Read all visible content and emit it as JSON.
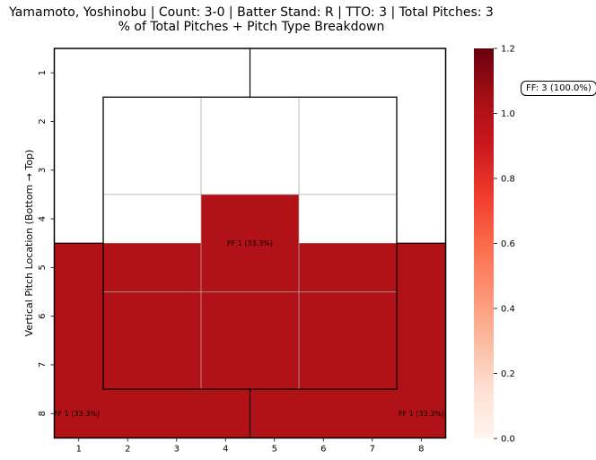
{
  "title_line1": "Yamamoto, Yoshinobu | Count: 3-0 | Batter Stand: R | TTO: 3 | Total Pitches: 3",
  "title_line2": "% of Total Pitches + Pitch Type Breakdown",
  "summary_box": "FF: 3 (100.0%)",
  "chart_data": {
    "type": "heatmap",
    "ylabel": "Vertical Pitch Location (Bottom → Top)",
    "xlabel": "",
    "x_ticks": [
      "1",
      "2",
      "3",
      "4",
      "5",
      "6",
      "7",
      "8"
    ],
    "y_ticks": [
      "1",
      "2",
      "3",
      "4",
      "5",
      "6",
      "7",
      "8"
    ],
    "colorbar": {
      "min": 0.0,
      "max": 1.2,
      "ticks": [
        "0.0",
        "0.2",
        "0.4",
        "0.6",
        "0.8",
        "1.0",
        "1.2"
      ],
      "colormap": "Reds"
    },
    "cells": [
      {
        "zone": "strike-center",
        "col_range": [
          4,
          5
        ],
        "row_range": [
          4,
          5
        ],
        "value": 1,
        "label": "FF 1 (33.3%)"
      },
      {
        "zone": "shadow-bottom-left",
        "col_range": [
          1,
          4
        ],
        "row_range": [
          5,
          8
        ],
        "value": 1,
        "label": "FF 1 (33.3%)"
      },
      {
        "zone": "shadow-bottom-right",
        "col_range": [
          5,
          8
        ],
        "row_range": [
          5,
          8
        ],
        "value": 1,
        "label": "FF 1 (33.3%)"
      }
    ],
    "cell_color": "#b11218"
  }
}
